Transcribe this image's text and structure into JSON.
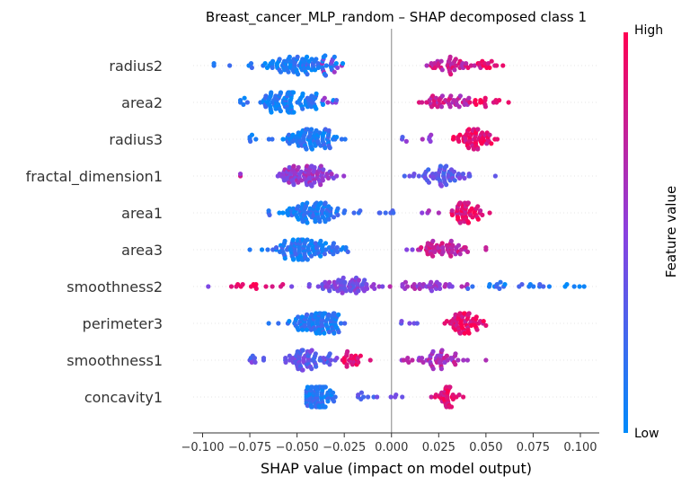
{
  "chart_data": {
    "type": "scatter",
    "subtype": "shap-beeswarm",
    "title": "Breast_cancer_MLP_random – SHAP decomposed class 1",
    "xlabel": "SHAP value (impact on model output)",
    "xlim": [
      -0.105,
      0.11
    ],
    "x_ticks": [
      "−0.100",
      "−0.075",
      "−0.050",
      "−0.025",
      "0.000",
      "0.025",
      "0.050",
      "0.075",
      "0.100"
    ],
    "x_tick_values": [
      -0.1,
      -0.075,
      -0.05,
      -0.025,
      0.0,
      0.025,
      0.05,
      0.075,
      0.1
    ],
    "features": [
      "radius2",
      "area2",
      "radius3",
      "fractal_dimension1",
      "area1",
      "area3",
      "smoothness2",
      "perimeter3",
      "smoothness1",
      "concavity1"
    ],
    "colorbar": {
      "label": "Feature value",
      "high": "High",
      "low": "Low",
      "low_color": "#008bfb",
      "high_color": "#ff0052"
    },
    "series": [
      {
        "feature": "radius2",
        "summary": {
          "min": -0.094,
          "max": 0.059
        },
        "clusters": [
          {
            "center": -0.05,
            "spread": 0.017,
            "n": 95,
            "feature_value": 0.1
          },
          {
            "center": -0.03,
            "spread": 0.008,
            "n": 10,
            "feature_value": 0.5
          },
          {
            "center": -0.094,
            "spread": 0.0,
            "n": 1,
            "feature_value": 0.1
          },
          {
            "center": 0.03,
            "spread": 0.012,
            "n": 40,
            "feature_value": 0.78
          },
          {
            "center": 0.05,
            "spread": 0.006,
            "n": 14,
            "feature_value": 0.92
          }
        ]
      },
      {
        "feature": "area2",
        "summary": {
          "min": -0.08,
          "max": 0.062
        },
        "clusters": [
          {
            "center": -0.053,
            "spread": 0.016,
            "n": 105,
            "feature_value": 0.1
          },
          {
            "center": -0.03,
            "spread": 0.006,
            "n": 6,
            "feature_value": 0.45
          },
          {
            "center": 0.03,
            "spread": 0.012,
            "n": 45,
            "feature_value": 0.75
          },
          {
            "center": 0.05,
            "spread": 0.008,
            "n": 14,
            "feature_value": 0.92
          }
        ]
      },
      {
        "feature": "radius3",
        "summary": {
          "min": -0.075,
          "max": 0.056
        },
        "clusters": [
          {
            "center": -0.043,
            "spread": 0.014,
            "n": 90,
            "feature_value": 0.12
          },
          {
            "center": -0.075,
            "spread": 0.004,
            "n": 4,
            "feature_value": 0.12
          },
          {
            "center": 0.004,
            "spread": 0.004,
            "n": 3,
            "feature_value": 0.4
          },
          {
            "center": 0.02,
            "spread": 0.006,
            "n": 5,
            "feature_value": 0.5
          },
          {
            "center": 0.043,
            "spread": 0.008,
            "n": 60,
            "feature_value": 0.88
          }
        ]
      },
      {
        "feature": "fractal_dimension1",
        "summary": {
          "min": -0.08,
          "max": 0.055
        },
        "clusters": [
          {
            "center": -0.045,
            "spread": 0.014,
            "n": 95,
            "feature_value": 0.55
          },
          {
            "center": -0.08,
            "spread": 0.0,
            "n": 1,
            "feature_value": 0.88
          },
          {
            "center": 0.028,
            "spread": 0.013,
            "n": 60,
            "feature_value": 0.35
          }
        ]
      },
      {
        "feature": "area1",
        "summary": {
          "min": -0.065,
          "max": 0.052
        },
        "clusters": [
          {
            "center": -0.042,
            "spread": 0.014,
            "n": 95,
            "feature_value": 0.12
          },
          {
            "center": -0.005,
            "spread": 0.007,
            "n": 6,
            "feature_value": 0.2
          },
          {
            "center": 0.02,
            "spread": 0.005,
            "n": 4,
            "feature_value": 0.55
          },
          {
            "center": 0.04,
            "spread": 0.007,
            "n": 55,
            "feature_value": 0.88
          }
        ]
      },
      {
        "feature": "area3",
        "summary": {
          "min": -0.075,
          "max": 0.05
        },
        "clusters": [
          {
            "center": -0.045,
            "spread": 0.015,
            "n": 110,
            "feature_value": 0.12
          },
          {
            "center": 0.01,
            "spread": 0.002,
            "n": 2,
            "feature_value": 0.5
          },
          {
            "center": 0.03,
            "spread": 0.01,
            "n": 55,
            "feature_value": 0.75
          }
        ]
      },
      {
        "feature": "smoothness2",
        "summary": {
          "min": -0.097,
          "max": 0.102
        },
        "clusters": [
          {
            "center": -0.025,
            "spread": 0.015,
            "n": 70,
            "feature_value": 0.45
          },
          {
            "center": -0.07,
            "spread": 0.015,
            "n": 14,
            "feature_value": 0.95
          },
          {
            "center": 0.02,
            "spread": 0.015,
            "n": 35,
            "feature_value": 0.6
          },
          {
            "center": 0.06,
            "spread": 0.02,
            "n": 20,
            "feature_value": 0.15
          },
          {
            "center": 0.095,
            "spread": 0.006,
            "n": 4,
            "feature_value": 0.05
          }
        ]
      },
      {
        "feature": "perimeter3",
        "summary": {
          "min": -0.065,
          "max": 0.05
        },
        "clusters": [
          {
            "center": -0.04,
            "spread": 0.012,
            "n": 100,
            "feature_value": 0.12
          },
          {
            "center": 0.01,
            "spread": 0.006,
            "n": 5,
            "feature_value": 0.45
          },
          {
            "center": 0.037,
            "spread": 0.008,
            "n": 65,
            "feature_value": 0.88
          }
        ]
      },
      {
        "feature": "smoothness1",
        "summary": {
          "min": -0.075,
          "max": 0.05
        },
        "clusters": [
          {
            "center": -0.045,
            "spread": 0.01,
            "n": 70,
            "feature_value": 0.35
          },
          {
            "center": -0.022,
            "spread": 0.007,
            "n": 25,
            "feature_value": 0.88
          },
          {
            "center": -0.07,
            "spread": 0.005,
            "n": 8,
            "feature_value": 0.35
          },
          {
            "center": 0.025,
            "spread": 0.012,
            "n": 50,
            "feature_value": 0.65
          }
        ]
      },
      {
        "feature": "concavity1",
        "summary": {
          "min": -0.045,
          "max": 0.038
        },
        "clusters": [
          {
            "center": -0.04,
            "spread": 0.008,
            "n": 90,
            "feature_value": 0.12
          },
          {
            "center": -0.015,
            "spread": 0.006,
            "n": 8,
            "feature_value": 0.3
          },
          {
            "center": 0.005,
            "spread": 0.004,
            "n": 4,
            "feature_value": 0.5
          },
          {
            "center": 0.03,
            "spread": 0.006,
            "n": 40,
            "feature_value": 0.88
          }
        ]
      }
    ]
  }
}
